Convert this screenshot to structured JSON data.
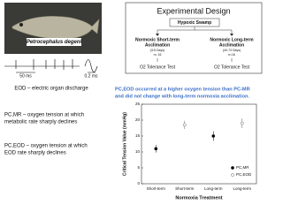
{
  "photo": {
    "species": "Petrocephalus degeni"
  },
  "eod": {
    "scale_left": "50 ms",
    "scale_right": "0.2 ms",
    "caption": "EOD – electric organ discharge"
  },
  "design": {
    "title": "Experimental Design",
    "source": "Hypoxic Swamp",
    "branches": [
      {
        "lines": [
          "Normoxic Short-term",
          "Acclimation"
        ],
        "detail": [
          "(3-5 Days)",
          "n= 16"
        ],
        "test": "O2 Tolerance Test"
      },
      {
        "lines": [
          "Normoxic Long-term",
          "Acclimation"
        ],
        "detail": [
          "(40-73 Days)",
          "n=16"
        ],
        "test": "O2 Tolerance Test"
      }
    ]
  },
  "definitions": [
    [
      "PC,MR – oxygen tension at which",
      "metabolic rate sharply declines"
    ],
    [
      "PC,EOD – oxygen tension at which",
      "EOD rate sharply declines"
    ]
  ],
  "chart_data": {
    "type": "errorbar",
    "annotation_lines": [
      "PC,EOD occurred at a higher oxygen tension than PC-MR",
      "and did not change with long-term normoxia acclimation."
    ],
    "annotation_color": "#3b6fc9",
    "categories": [
      "Short-term",
      "Short-term",
      "Long-term",
      "Long-term"
    ],
    "x_label": "Normoxia Treatment",
    "y_label": "Critical Tension Value (mmHg)",
    "ylim": [
      0,
      25
    ],
    "yticks": [
      0,
      5,
      10,
      15,
      20,
      25
    ],
    "legend_position": "lower right",
    "series": [
      {
        "name": "PC,MR",
        "color": "#000000",
        "filled": true,
        "values": [
          11,
          null,
          15,
          null
        ],
        "errors": [
          1.2,
          null,
          1.5,
          null
        ]
      },
      {
        "name": "PC,EOD",
        "color": "#666666",
        "filled": false,
        "values": [
          null,
          18.5,
          null,
          19
        ],
        "errors": [
          null,
          1.3,
          null,
          1.5
        ]
      }
    ]
  }
}
